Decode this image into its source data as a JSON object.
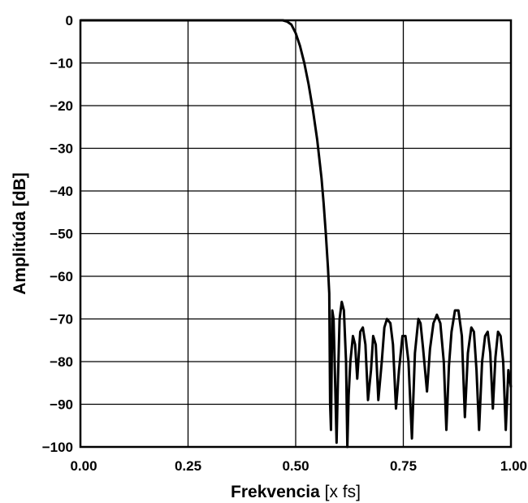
{
  "chart_data": {
    "type": "line",
    "xlabel": "Frekvencia",
    "xlabel_unit": "[x fs]",
    "ylabel": "Amplitúda [dB]",
    "xlim": [
      0,
      1
    ],
    "ylim": [
      -100,
      0
    ],
    "grid": true,
    "x_ticks": [
      0,
      0.25,
      0.5,
      0.75,
      1.0
    ],
    "x_tick_labels": [
      "0.00",
      "0.25",
      "0.50",
      "0.75",
      "1.00"
    ],
    "y_ticks": [
      0,
      -10,
      -20,
      -30,
      -40,
      -50,
      -60,
      -70,
      -80,
      -90,
      -100
    ],
    "y_tick_labels": [
      "0",
      "−10",
      "−20",
      "−30",
      "−40",
      "−50",
      "−60",
      "−70",
      "−80",
      "−90",
      "−100"
    ],
    "series": [
      {
        "color": "#000000",
        "x": [
          0.0,
          0.4,
          0.45,
          0.47,
          0.48,
          0.49,
          0.5,
          0.51,
          0.52,
          0.53,
          0.54,
          0.55,
          0.56,
          0.565,
          0.57,
          0.575,
          0.578,
          0.58,
          0.582,
          0.585,
          0.588,
          0.59,
          0.595,
          0.598,
          0.602,
          0.607,
          0.612,
          0.617,
          0.62,
          0.623,
          0.627,
          0.633,
          0.638,
          0.643,
          0.65,
          0.656,
          0.662,
          0.668,
          0.675,
          0.68,
          0.686,
          0.692,
          0.7,
          0.706,
          0.712,
          0.72,
          0.726,
          0.733,
          0.74,
          0.748,
          0.755,
          0.762,
          0.77,
          0.777,
          0.785,
          0.79,
          0.796,
          0.805,
          0.812,
          0.82,
          0.828,
          0.836,
          0.844,
          0.85,
          0.856,
          0.862,
          0.87,
          0.878,
          0.886,
          0.893,
          0.9,
          0.908,
          0.914,
          0.92,
          0.926,
          0.933,
          0.94,
          0.946,
          0.952,
          0.958,
          0.964,
          0.97,
          0.976,
          0.982,
          0.988,
          0.994,
          1.0
        ],
        "y": [
          0,
          0,
          0,
          0,
          -0.3,
          -1,
          -3,
          -6,
          -10,
          -15,
          -21,
          -28,
          -37,
          -43,
          -50,
          -58,
          -64,
          -90,
          -96,
          -68,
          -70,
          -78,
          -99,
          -85,
          -70,
          -66,
          -68,
          -80,
          -100,
          -88,
          -80,
          -74,
          -76,
          -84,
          -73,
          -72,
          -76,
          -89,
          -82,
          -74,
          -76,
          -89,
          -80,
          -72,
          -70,
          -71,
          -76,
          -91,
          -82,
          -74,
          -74,
          -80,
          -98,
          -78,
          -70,
          -71,
          -77,
          -87,
          -77,
          -71,
          -69,
          -71,
          -80,
          -96,
          -81,
          -73,
          -68,
          -68,
          -74,
          -93,
          -78,
          -72,
          -73,
          -82,
          -96,
          -80,
          -74,
          -73,
          -78,
          -91,
          -79,
          -73,
          -74,
          -80,
          -96,
          -82,
          -86
        ]
      }
    ]
  }
}
